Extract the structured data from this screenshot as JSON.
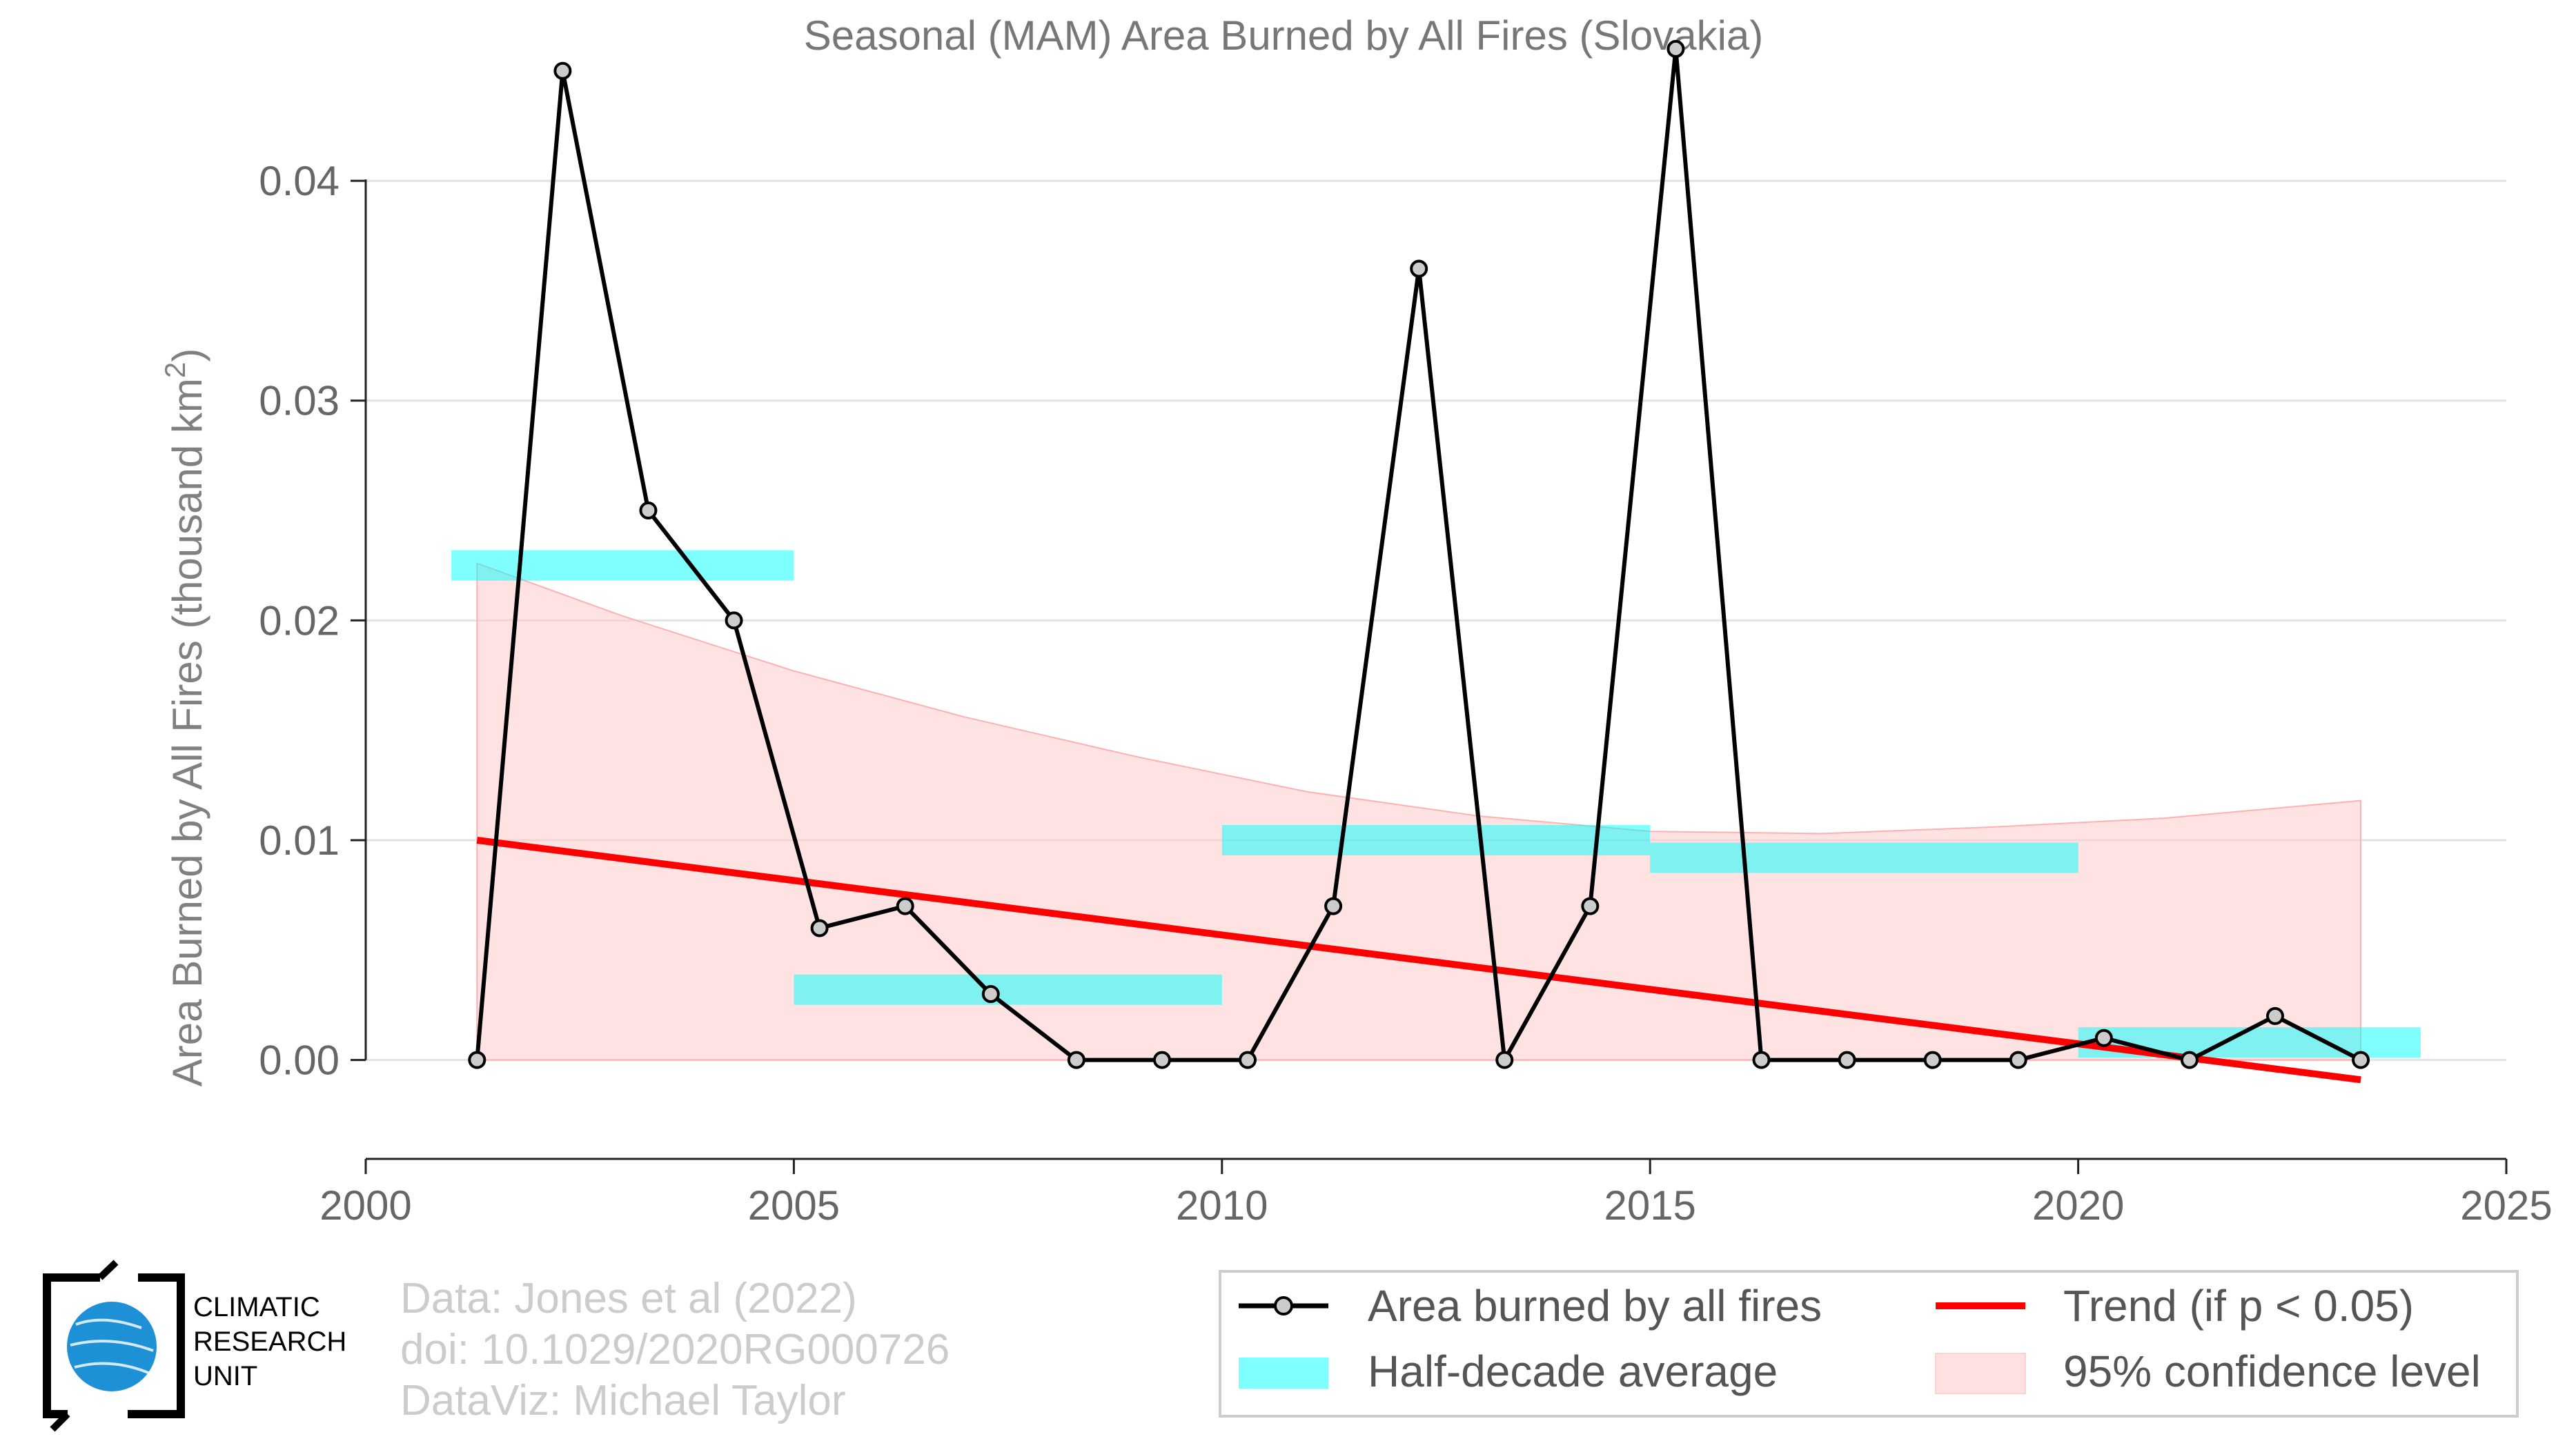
{
  "chart_data": {
    "type": "line",
    "title": "Seasonal (MAM) Area Burned by All Fires (Slovakia)",
    "ylabel_main": "Area Burned by All Fires (thousand km",
    "ylabel_sup": "2",
    "ylabel_close": ")",
    "xlabel": "",
    "xlim": [
      2000,
      2025
    ],
    "ylim": [
      -0.0045,
      0.0465
    ],
    "x_ticks": [
      {
        "value": 2000,
        "label": "2000"
      },
      {
        "value": 2005,
        "label": "2005"
      },
      {
        "value": 2010,
        "label": "2010"
      },
      {
        "value": 2015,
        "label": "2015"
      },
      {
        "value": 2020,
        "label": "2020"
      },
      {
        "value": 2025,
        "label": "2025"
      }
    ],
    "y_ticks": [
      {
        "value": 0.0,
        "label": "0.00"
      },
      {
        "value": 0.01,
        "label": "0.01"
      },
      {
        "value": 0.02,
        "label": "0.02"
      },
      {
        "value": 0.03,
        "label": "0.03"
      },
      {
        "value": 0.04,
        "label": "0.04"
      }
    ],
    "grid": "horizontal",
    "series": [
      {
        "name": "Area burned by all fires",
        "kind": "line-markers",
        "color": "#000000",
        "marker_fill": "#cccccc",
        "x": [
          2001.3,
          2002.3,
          2003.3,
          2004.3,
          2005.3,
          2006.3,
          2007.3,
          2008.3,
          2009.3,
          2010.3,
          2011.3,
          2012.3,
          2013.3,
          2014.3,
          2015.3,
          2016.3,
          2017.3,
          2018.3,
          2019.3,
          2020.3,
          2021.3,
          2022.3,
          2023.3
        ],
        "values": [
          0.0,
          0.045,
          0.025,
          0.02,
          0.006,
          0.007,
          0.003,
          0.0,
          0.0,
          0.0,
          0.007,
          0.036,
          0.0,
          0.007,
          0.046,
          0.0,
          0.0,
          0.0,
          0.0,
          0.001,
          0.0,
          0.002,
          0.0
        ]
      },
      {
        "name": "Half-decade average",
        "kind": "segments",
        "color": "#00ffff",
        "segments": [
          {
            "x0": 2001,
            "x1": 2005,
            "y": 0.0225
          },
          {
            "x0": 2005,
            "x1": 2010,
            "y": 0.0032
          },
          {
            "x0": 2010,
            "x1": 2015,
            "y": 0.01
          },
          {
            "x0": 2015,
            "x1": 2020,
            "y": 0.0092
          },
          {
            "x0": 2020,
            "x1": 2024,
            "y": 0.0008
          }
        ]
      },
      {
        "name": "Trend (if p < 0.05)",
        "kind": "line",
        "color": "#ff0000",
        "x": [
          2001.3,
          2023.3
        ],
        "values": [
          0.01,
          -0.0009
        ]
      },
      {
        "name": "95% confidence level",
        "kind": "band",
        "color": "#ffcccc",
        "x": [
          2001.3,
          2003,
          2005,
          2007,
          2009,
          2011,
          2013,
          2015,
          2017,
          2019,
          2021,
          2023.3
        ],
        "upper": [
          0.0226,
          0.0202,
          0.0177,
          0.0156,
          0.0138,
          0.0122,
          0.0111,
          0.0104,
          0.0103,
          0.0106,
          0.011,
          0.0118
        ],
        "lower": [
          0.0,
          0.0,
          0.0,
          0.0,
          0.0,
          0.0,
          0.0,
          0.0,
          0.0,
          0.0,
          0.0,
          0.0
        ]
      }
    ],
    "legend_position": "bottom-right"
  },
  "legend": {
    "items": [
      {
        "label": "Area burned by all fires"
      },
      {
        "label": "Trend (if p < 0.05)"
      },
      {
        "label": "Half-decade average"
      },
      {
        "label": "95% confidence level"
      }
    ]
  },
  "credits": {
    "line1": "Data: Jones et al (2022)",
    "line2": "doi: 10.1029/2020RG000726",
    "line3": "DataViz: Michael Taylor"
  },
  "logo": {
    "line1": "CLIMATIC",
    "line2": "RESEARCH",
    "line3": "UNIT",
    "globe_color": "#1e90d6"
  }
}
